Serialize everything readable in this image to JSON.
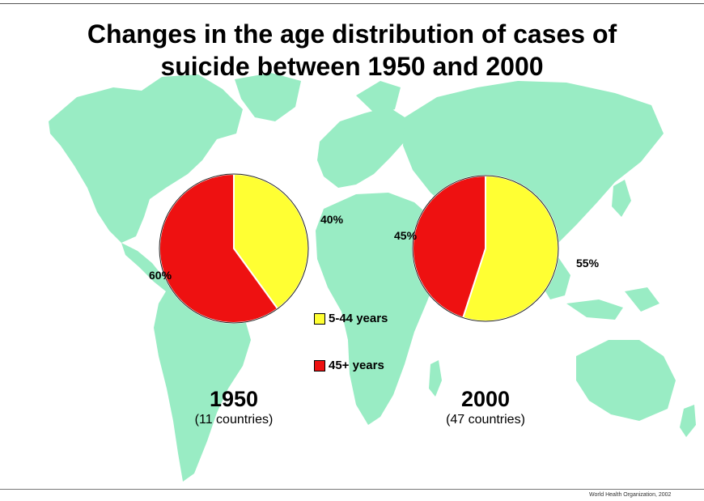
{
  "title_line1": "Changes in the age distribution of cases of",
  "title_line2": "suicide between 1950 and 2000",
  "colors": {
    "map": "#99ecc4",
    "young": "#ffff33",
    "old": "#ee1111"
  },
  "legend": [
    {
      "label": "5-44 years",
      "color": "#ffff33"
    },
    {
      "label": "45+ years",
      "color": "#ee1111"
    }
  ],
  "chart_data": [
    {
      "type": "pie",
      "label": "1950",
      "subtitle": "(11 countries)",
      "slices": [
        {
          "name": "5-44 years",
          "value": 40,
          "label": "40%"
        },
        {
          "name": "45+ years",
          "value": 60,
          "label": "60%"
        }
      ]
    },
    {
      "type": "pie",
      "label": "2000",
      "subtitle": "(47 countries)",
      "slices": [
        {
          "name": "5-44 years",
          "value": 55,
          "label": "55%"
        },
        {
          "name": "45+ years",
          "value": 45,
          "label": "45%"
        }
      ]
    }
  ],
  "footer": "World Health Organization, 2002"
}
